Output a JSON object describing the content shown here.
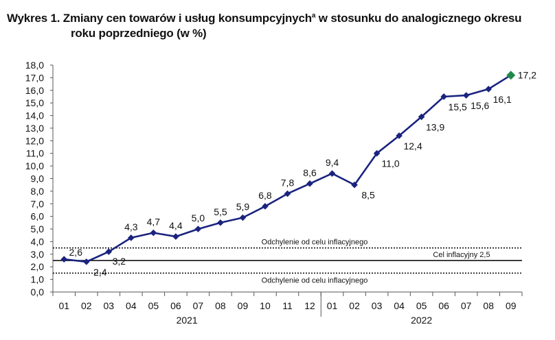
{
  "title": {
    "prefix": "Wykres 1. Zmiany cen towarów i usług konsumpcyjnych",
    "superscript": "a",
    "suffix": " w stosunku do analogicznego okresu",
    "line2": "roku poprzedniego (w %)"
  },
  "chart_data": {
    "type": "line",
    "title": "Wykres 1. Zmiany cen towarów i usług konsumpcyjnychᵃ w stosunku do analogicznego okresu roku poprzedniego (w %)",
    "categories": [
      "01",
      "02",
      "03",
      "04",
      "05",
      "06",
      "07",
      "08",
      "09",
      "10",
      "11",
      "12",
      "01",
      "02",
      "03",
      "04",
      "05",
      "06",
      "07",
      "08",
      "09"
    ],
    "year_groups": [
      {
        "label": "2021",
        "from": 0,
        "to": 11
      },
      {
        "label": "2022",
        "from": 12,
        "to": 20
      }
    ],
    "series": [
      {
        "values": [
          2.6,
          2.4,
          3.2,
          4.3,
          4.7,
          4.4,
          5.0,
          5.5,
          5.9,
          6.8,
          7.8,
          8.6,
          9.4,
          8.5,
          11.0,
          12.4,
          13.9,
          15.5,
          15.6,
          16.1,
          17.2
        ],
        "data_labels": [
          "2,6",
          "2,4",
          "3,2",
          "4,3",
          "4,7",
          "4,4",
          "5,0",
          "5,5",
          "5,9",
          "6,8",
          "7,8",
          "8,6",
          "9,4",
          "8,5",
          "11,0",
          "12,4",
          "13,9",
          "15,5",
          "15,6",
          "16,1",
          "17,2"
        ],
        "color": "#1a237e",
        "last_point_color": "#1e8a4a"
      }
    ],
    "reference_lines": [
      {
        "value": 3.5,
        "label": "Odchylenie od celu inflacyjnego",
        "style": "dotted"
      },
      {
        "value": 2.5,
        "label": "Cel inflacyjny 2,5",
        "style": "solid"
      },
      {
        "value": 1.5,
        "label": "Odchylenie od celu inflacyjnego",
        "style": "dotted"
      }
    ],
    "y_ticks": [
      "0,0",
      "1,0",
      "2,0",
      "3,0",
      "4,0",
      "5,0",
      "6,0",
      "7,0",
      "8,0",
      "9,0",
      "10,0",
      "11,0",
      "12,0",
      "13,0",
      "14,0",
      "15,0",
      "16,0",
      "17,0",
      "18,0"
    ],
    "ylim": [
      0,
      18
    ],
    "grid": false,
    "legend": "none",
    "colors": {
      "line": "#1a237e",
      "marker": "#1a237e",
      "last_marker": "#1e8a4a",
      "axis": "#555555",
      "reference": "#111111"
    }
  }
}
